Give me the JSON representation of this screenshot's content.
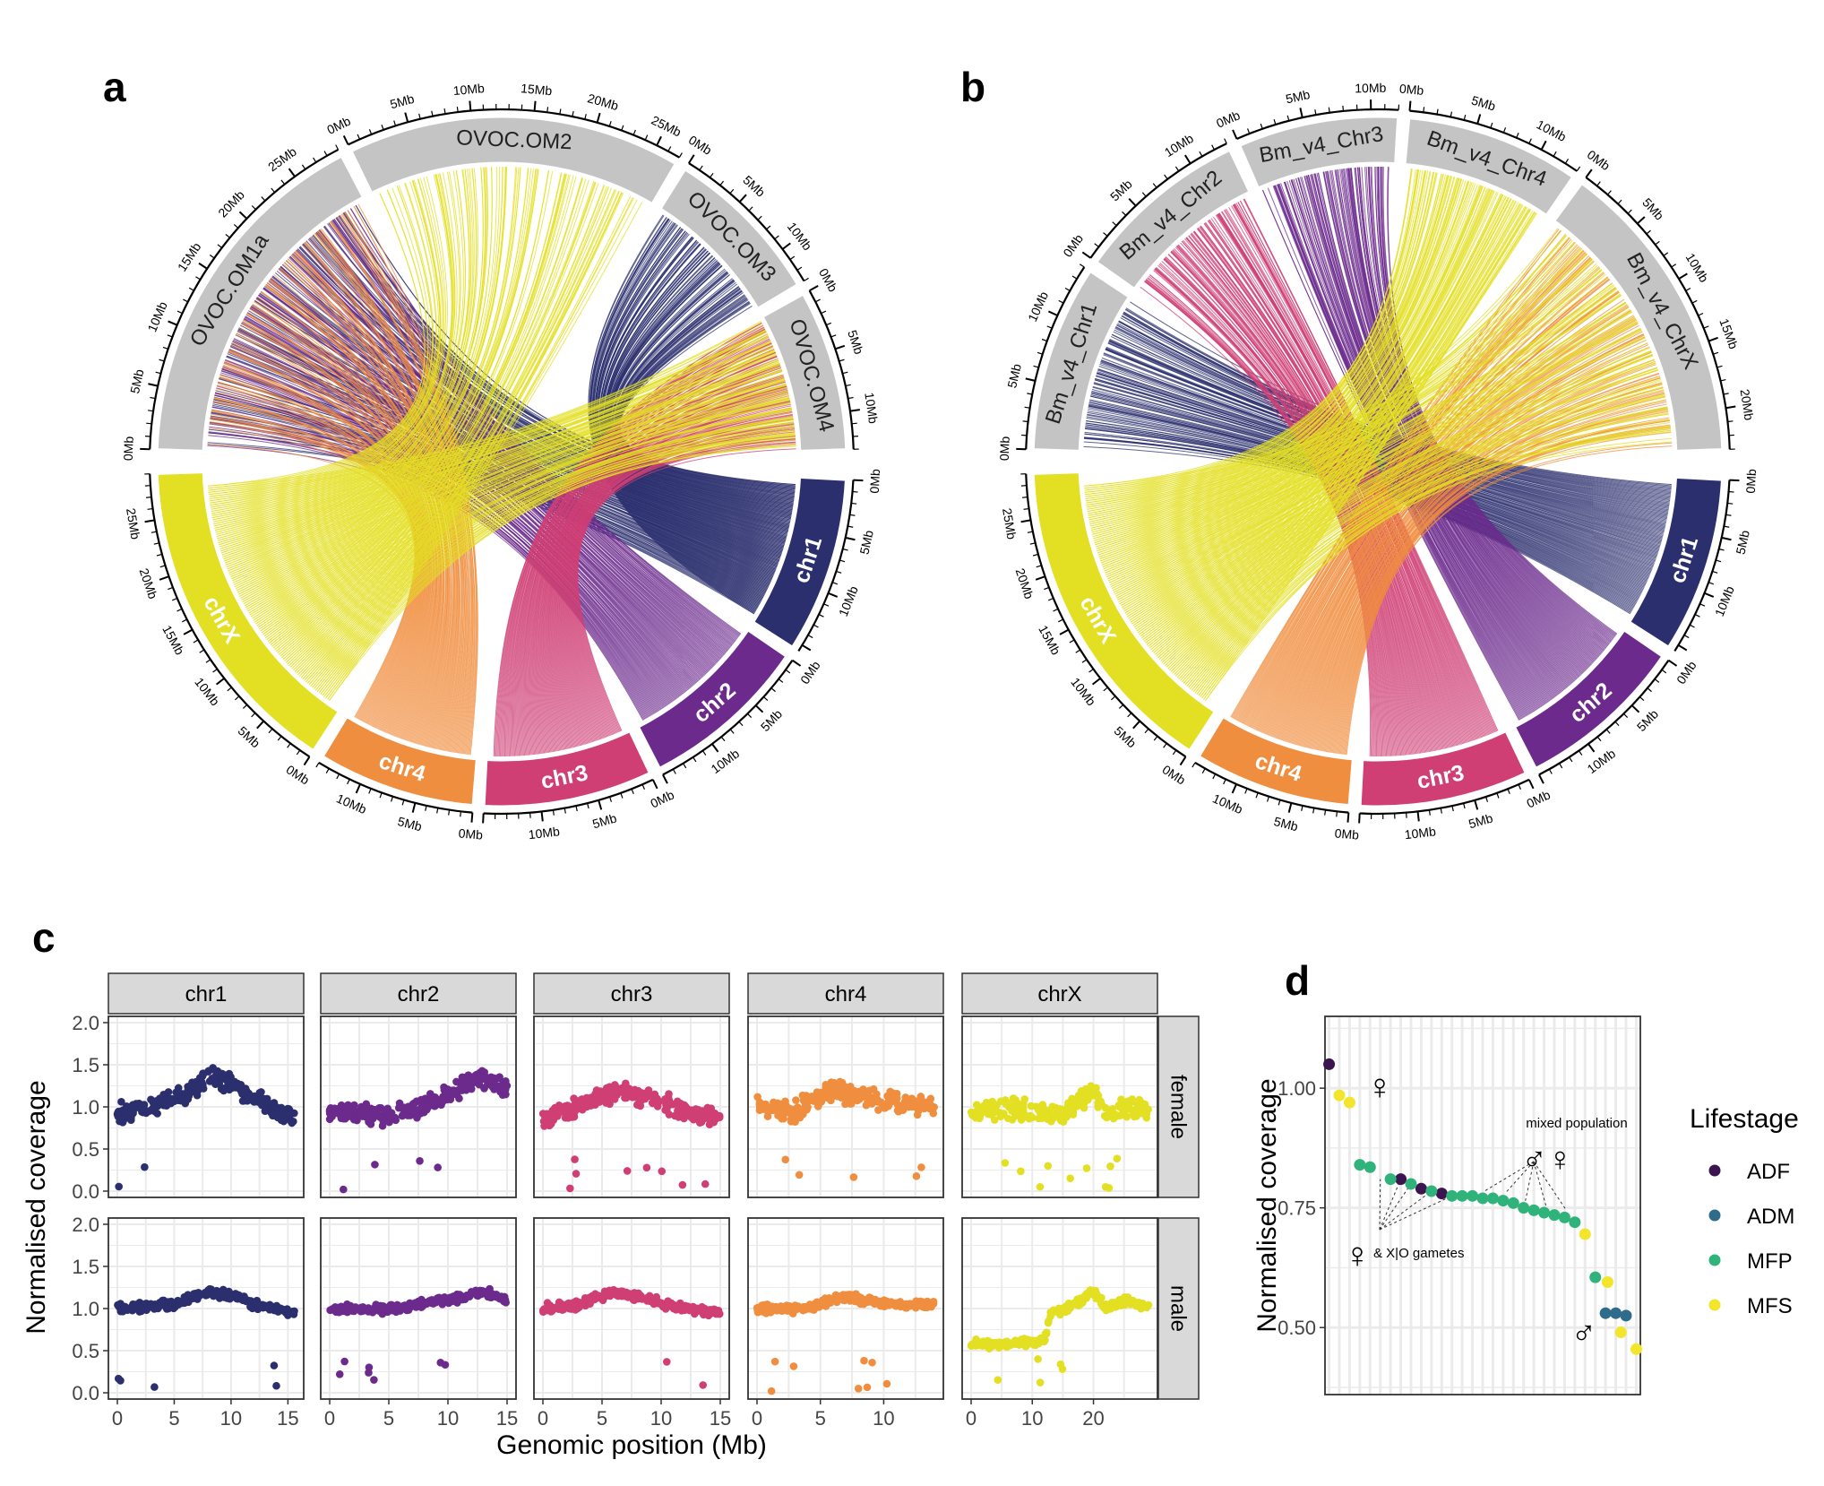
{
  "panel_labels": {
    "a": "a",
    "b": "b",
    "c": "c",
    "d": "d"
  },
  "colors": {
    "chr1": "#2b2f6e",
    "chr2": "#6b2a8c",
    "chr3": "#cf3f74",
    "chr4": "#f08e3f",
    "chrX": "#e3df22",
    "ref": "#c4c4c4",
    "ADF": "#3b1450",
    "ADM": "#2f6c8c",
    "MFP": "#2fb37a",
    "MFS": "#f2e52c",
    "strip": "#d9d9d9",
    "grid": "#ebebeb"
  },
  "chart_data": [
    {
      "type": "circos",
      "panel": "a",
      "query_chromosomes": [
        {
          "name": "chr1",
          "length_mb": 15.6,
          "ticks": [
            "0Mb",
            "5Mb",
            "10Mb"
          ]
        },
        {
          "name": "chr2",
          "length_mb": 15.0,
          "ticks": [
            "0Mb",
            "5Mb",
            "10Mb"
          ]
        },
        {
          "name": "chr3",
          "length_mb": 15.0,
          "ticks": [
            "0Mb",
            "5Mb",
            "10Mb"
          ]
        },
        {
          "name": "chr4",
          "length_mb": 14.0,
          "ticks": [
            "0Mb",
            "5Mb",
            "10Mb"
          ]
        },
        {
          "name": "chrX",
          "length_mb": 29.0,
          "ticks": [
            "0Mb",
            "5Mb",
            "10Mb",
            "15Mb",
            "20Mb",
            "25Mb"
          ]
        }
      ],
      "reference_chromosomes": [
        {
          "name": "OVOC.OM1a",
          "length_mb": 29.0,
          "ticks": [
            "0Mb",
            "5Mb",
            "10Mb",
            "15Mb",
            "20Mb",
            "25Mb"
          ]
        },
        {
          "name": "OVOC.OM2",
          "length_mb": 27.0,
          "ticks": [
            "0Mb",
            "5Mb",
            "10Mb",
            "15Mb",
            "20Mb",
            "25Mb"
          ]
        },
        {
          "name": "OVOC.OM3",
          "length_mb": 13.0,
          "ticks": [
            "0Mb",
            "5Mb",
            "10Mb"
          ]
        },
        {
          "name": "OVOC.OM4",
          "length_mb": 13.0,
          "ticks": [
            "0Mb",
            "5Mb",
            "10Mb"
          ]
        }
      ],
      "links": [
        {
          "from": "chr1",
          "to": "OVOC.OM1a"
        },
        {
          "from": "chr1",
          "to": "OVOC.OM3"
        },
        {
          "from": "chr2",
          "to": "OVOC.OM1a"
        },
        {
          "from": "chr3",
          "to": "OVOC.OM4"
        },
        {
          "from": "chr4",
          "to": "OVOC.OM1a"
        },
        {
          "from": "chrX",
          "to": "OVOC.OM2"
        },
        {
          "from": "chrX",
          "to": "OVOC.OM4"
        }
      ]
    },
    {
      "type": "circos",
      "panel": "b",
      "query_chromosomes": [
        {
          "name": "chr1",
          "length_mb": 15.6,
          "ticks": [
            "0Mb",
            "5Mb",
            "10Mb"
          ]
        },
        {
          "name": "chr2",
          "length_mb": 15.0,
          "ticks": [
            "0Mb",
            "5Mb",
            "10Mb"
          ]
        },
        {
          "name": "chr3",
          "length_mb": 15.0,
          "ticks": [
            "0Mb",
            "5Mb",
            "10Mb"
          ]
        },
        {
          "name": "chr4",
          "length_mb": 14.0,
          "ticks": [
            "0Mb",
            "5Mb",
            "10Mb"
          ]
        },
        {
          "name": "chrX",
          "length_mb": 29.0,
          "ticks": [
            "0Mb",
            "5Mb",
            "10Mb",
            "15Mb",
            "20Mb",
            "25Mb"
          ]
        }
      ],
      "reference_chromosomes": [
        {
          "name": "Bm_v4_Chr1",
          "length_mb": 14.0,
          "ticks": [
            "0Mb",
            "5Mb",
            "10Mb"
          ]
        },
        {
          "name": "Bm_v4_Chr2",
          "length_mb": 13.0,
          "ticks": [
            "0Mb",
            "5Mb",
            "10Mb"
          ]
        },
        {
          "name": "Bm_v4_Chr3",
          "length_mb": 12.0,
          "ticks": [
            "0Mb",
            "5Mb",
            "10Mb"
          ]
        },
        {
          "name": "Bm_v4_Chr4",
          "length_mb": 13.0,
          "ticks": [
            "0Mb",
            "5Mb",
            "10Mb"
          ]
        },
        {
          "name": "Bm_v4_ChrX",
          "length_mb": 23.0,
          "ticks": [
            "0Mb",
            "5Mb",
            "10Mb",
            "15Mb",
            "20Mb"
          ]
        }
      ],
      "links": [
        {
          "from": "chr1",
          "to": "Bm_v4_Chr1"
        },
        {
          "from": "chr2",
          "to": "Bm_v4_Chr3"
        },
        {
          "from": "chr3",
          "to": "Bm_v4_Chr2"
        },
        {
          "from": "chr4",
          "to": "Bm_v4_ChrX"
        },
        {
          "from": "chrX",
          "to": "Bm_v4_Chr4"
        },
        {
          "from": "chrX",
          "to": "Bm_v4_ChrX"
        }
      ]
    },
    {
      "type": "scatter",
      "panel": "c",
      "xlabel": "Genomic position (Mb)",
      "ylabel": "Normalised coverage",
      "ylim": [
        0,
        2.0
      ],
      "yticks": [
        "0.0",
        "0.5",
        "1.0",
        "1.5",
        "2.0"
      ],
      "grid": true,
      "rows": [
        "female",
        "male"
      ],
      "facets": [
        {
          "name": "chr1",
          "xmax": 15.6,
          "xticks": [
            0,
            5,
            10,
            15
          ]
        },
        {
          "name": "chr2",
          "xmax": 15.0,
          "xticks": [
            0,
            5,
            10,
            15
          ]
        },
        {
          "name": "chr3",
          "xmax": 15.0,
          "xticks": [
            0,
            5,
            10,
            15
          ]
        },
        {
          "name": "chr4",
          "xmax": 14.0,
          "xticks": [
            0,
            5,
            10
          ]
        },
        {
          "name": "chrX",
          "xmax": 29.0,
          "xticks": [
            0,
            10,
            20
          ]
        }
      ],
      "trends": {
        "female": {
          "chr1": [
            [
              0,
              0.9
            ],
            [
              3,
              1.0
            ],
            [
              6,
              1.15
            ],
            [
              8,
              1.35
            ],
            [
              10,
              1.3
            ],
            [
              12,
              1.1
            ],
            [
              15.6,
              0.85
            ]
          ],
          "chr2": [
            [
              0,
              0.95
            ],
            [
              5,
              0.9
            ],
            [
              8,
              1.0
            ],
            [
              11,
              1.2
            ],
            [
              13,
              1.35
            ],
            [
              15,
              1.2
            ]
          ],
          "chr3": [
            [
              0,
              0.85
            ],
            [
              3,
              1.0
            ],
            [
              5,
              1.15
            ],
            [
              7,
              1.2
            ],
            [
              10,
              1.05
            ],
            [
              13,
              0.9
            ],
            [
              15,
              0.85
            ]
          ],
          "chr4": [
            [
              0,
              1.0
            ],
            [
              3,
              0.95
            ],
            [
              6,
              1.2
            ],
            [
              9,
              1.1
            ],
            [
              14,
              1.0
            ]
          ],
          "chrX": [
            [
              0,
              0.9
            ],
            [
              5,
              1.0
            ],
            [
              10,
              0.95
            ],
            [
              15,
              0.9
            ],
            [
              18,
              1.1
            ],
            [
              20,
              1.2
            ],
            [
              22,
              0.9
            ],
            [
              25,
              1.0
            ],
            [
              29,
              0.95
            ]
          ]
        },
        "male": {
          "chr1": [
            [
              0,
              1.0
            ],
            [
              5,
              1.05
            ],
            [
              8,
              1.2
            ],
            [
              10,
              1.15
            ],
            [
              12,
              1.05
            ],
            [
              15.6,
              0.95
            ]
          ],
          "chr2": [
            [
              0,
              1.0
            ],
            [
              5,
              1.0
            ],
            [
              10,
              1.1
            ],
            [
              13,
              1.2
            ],
            [
              15,
              1.1
            ]
          ],
          "chr3": [
            [
              0,
              1.0
            ],
            [
              3,
              1.05
            ],
            [
              6,
              1.2
            ],
            [
              9,
              1.1
            ],
            [
              12,
              1.0
            ],
            [
              15,
              0.95
            ]
          ],
          "chr4": [
            [
              0,
              1.0
            ],
            [
              4,
              1.0
            ],
            [
              7,
              1.15
            ],
            [
              10,
              1.05
            ],
            [
              14,
              1.05
            ]
          ],
          "chrX": [
            [
              0,
              0.58
            ],
            [
              5,
              0.58
            ],
            [
              10,
              0.6
            ],
            [
              12,
              0.62
            ],
            [
              13,
              0.95
            ],
            [
              16,
              1.0
            ],
            [
              20,
              1.2
            ],
            [
              22,
              1.0
            ],
            [
              26,
              1.1
            ],
            [
              29,
              1.0
            ]
          ]
        }
      }
    },
    {
      "type": "scatter",
      "panel": "d",
      "ylabel": "Normalised coverage",
      "ylim": [
        0.36,
        1.15
      ],
      "yticks": [
        "0.50",
        "0.75",
        "1.00"
      ],
      "grid": true,
      "legend_title": "Lifestage",
      "legend_position": "right",
      "series": [
        {
          "name": "ADF",
          "points": [
            [
              1,
              1.05
            ],
            [
              8,
              0.81
            ],
            [
              10,
              0.79
            ],
            [
              12,
              0.78
            ]
          ]
        },
        {
          "name": "ADM",
          "points": [
            [
              28,
              0.53
            ],
            [
              29,
              0.53
            ],
            [
              30,
              0.525
            ]
          ]
        },
        {
          "name": "MFP",
          "points": [
            [
              4,
              0.84
            ],
            [
              5,
              0.835
            ],
            [
              7,
              0.81
            ],
            [
              9,
              0.8
            ],
            [
              11,
              0.785
            ],
            [
              13,
              0.775
            ],
            [
              14,
              0.775
            ],
            [
              15,
              0.775
            ],
            [
              16,
              0.77
            ],
            [
              17,
              0.77
            ],
            [
              18,
              0.765
            ],
            [
              19,
              0.76
            ],
            [
              20,
              0.75
            ],
            [
              21,
              0.745
            ],
            [
              22,
              0.74
            ],
            [
              23,
              0.735
            ],
            [
              24,
              0.73
            ],
            [
              25,
              0.72
            ],
            [
              27,
              0.605
            ]
          ]
        },
        {
          "name": "MFS",
          "points": [
            [
              2,
              0.985
            ],
            [
              3,
              0.97
            ],
            [
              26,
              0.695
            ],
            [
              28.2,
              0.595
            ],
            [
              29.5,
              0.49
            ],
            [
              31,
              0.455
            ]
          ]
        }
      ],
      "annotations": {
        "female_symbol": "♀",
        "male_symbol": "♂",
        "mixed_label": "mixed population",
        "mixed_symbols": "♂♀",
        "gametes_symbol": "♀",
        "gametes_label": "& X|O gametes"
      }
    }
  ]
}
